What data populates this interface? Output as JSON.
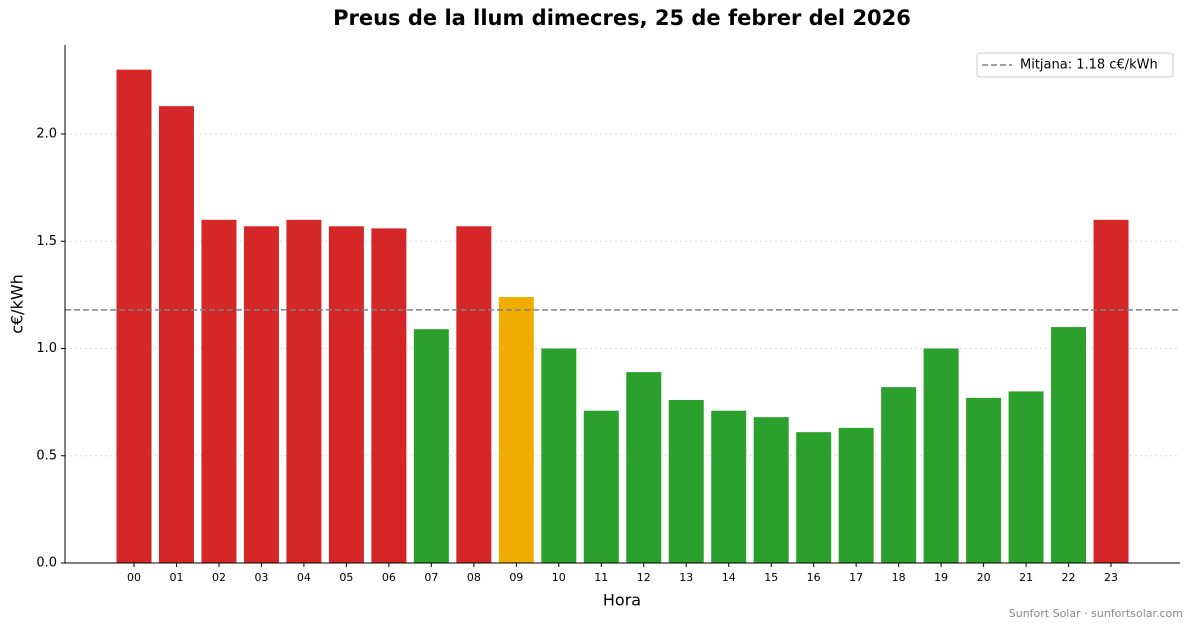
{
  "chart_data": {
    "type": "bar",
    "title": "Preus de la llum dimecres, 25 de febrer del 2026",
    "x_label": "Hora",
    "y_label": "c€/kWh",
    "categories": [
      "00",
      "01",
      "02",
      "03",
      "04",
      "05",
      "06",
      "07",
      "08",
      "09",
      "10",
      "11",
      "12",
      "13",
      "14",
      "15",
      "16",
      "17",
      "18",
      "19",
      "20",
      "21",
      "22",
      "23"
    ],
    "values": [
      2.3,
      2.13,
      1.6,
      1.57,
      1.6,
      1.57,
      1.56,
      1.09,
      1.57,
      1.24,
      1.0,
      0.71,
      0.89,
      0.76,
      0.71,
      0.68,
      0.61,
      0.63,
      0.82,
      1.0,
      0.77,
      0.8,
      1.1,
      1.6
    ],
    "colors": [
      "#d62728",
      "#d62728",
      "#d62728",
      "#d62728",
      "#d62728",
      "#d62728",
      "#d62728",
      "#2ca02c",
      "#d62728",
      "#f0ad00",
      "#2ca02c",
      "#2ca02c",
      "#2ca02c",
      "#2ca02c",
      "#2ca02c",
      "#2ca02c",
      "#2ca02c",
      "#2ca02c",
      "#2ca02c",
      "#2ca02c",
      "#2ca02c",
      "#2ca02c",
      "#2ca02c",
      "#d62728"
    ],
    "mean": 1.18,
    "mean_label": "Mitjana: 1.18 c€/kWh",
    "mean_color": "#808080",
    "ylim": [
      0,
      2.415
    ],
    "yticks": [
      {
        "value": 0,
        "label": "0.0"
      },
      {
        "value": 0.5,
        "label": "0.5"
      },
      {
        "value": 1,
        "label": "1.0"
      },
      {
        "value": 1.5,
        "label": "1.5"
      },
      {
        "value": 2,
        "label": "2.0"
      }
    ],
    "grid": true,
    "legend_position": "upper-right",
    "footer": "Sunfort Solar · sunfortsolar.com"
  }
}
